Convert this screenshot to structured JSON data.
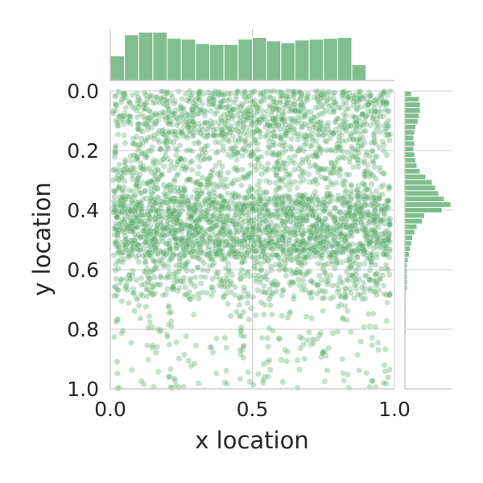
{
  "chart_data": {
    "type": "scatter",
    "title": "",
    "xlabel": "x location",
    "ylabel": "y location",
    "xlim": [
      0.0,
      1.0
    ],
    "ylim": [
      1.0,
      0.0
    ],
    "y_axis_inverted": true,
    "x_ticks": [
      0.0,
      0.5,
      1.0
    ],
    "y_ticks": [
      0.0,
      0.2,
      0.4,
      0.6,
      0.8,
      1.0
    ],
    "x_tick_labels": [
      "0.0",
      "0.5",
      "1.0"
    ],
    "y_tick_labels": [
      "0.0",
      "0.2",
      "0.4",
      "0.6",
      "0.8",
      "1.0"
    ],
    "grid": true,
    "marginal_histograms": true,
    "point_count_approx": 4000,
    "point_color": "#55a868",
    "point_alpha": 0.35,
    "x_histogram": {
      "bin_edges_start": 0.0,
      "bin_width": 0.05,
      "counts": [
        28,
        52,
        55,
        55,
        48,
        47,
        42,
        41,
        41,
        47,
        49,
        45,
        43,
        46,
        47,
        48,
        49,
        18
      ]
    },
    "y_histogram": {
      "bin_edges_start": 0.0,
      "bin_width": 0.0186,
      "counts": [
        6,
        13,
        14,
        14,
        13,
        12,
        10,
        9,
        8,
        9,
        8,
        9,
        10,
        11,
        14,
        19,
        25,
        28,
        31,
        36,
        42,
        34,
        18,
        16,
        11,
        9,
        7,
        6,
        5,
        4,
        3,
        2,
        2,
        2,
        2,
        2,
        1,
        1,
        1,
        1,
        1,
        1,
        1,
        1,
        0,
        0,
        0,
        0,
        0
      ]
    },
    "y_density": {
      "description": "relative density by y band (band_start, band_end, weight)",
      "bands": [
        [
          0.0,
          0.15,
          0.21
        ],
        [
          0.15,
          0.35,
          0.17
        ],
        [
          0.35,
          0.56,
          0.46
        ],
        [
          0.56,
          0.7,
          0.11
        ],
        [
          0.7,
          1.0,
          0.05
        ]
      ]
    }
  }
}
